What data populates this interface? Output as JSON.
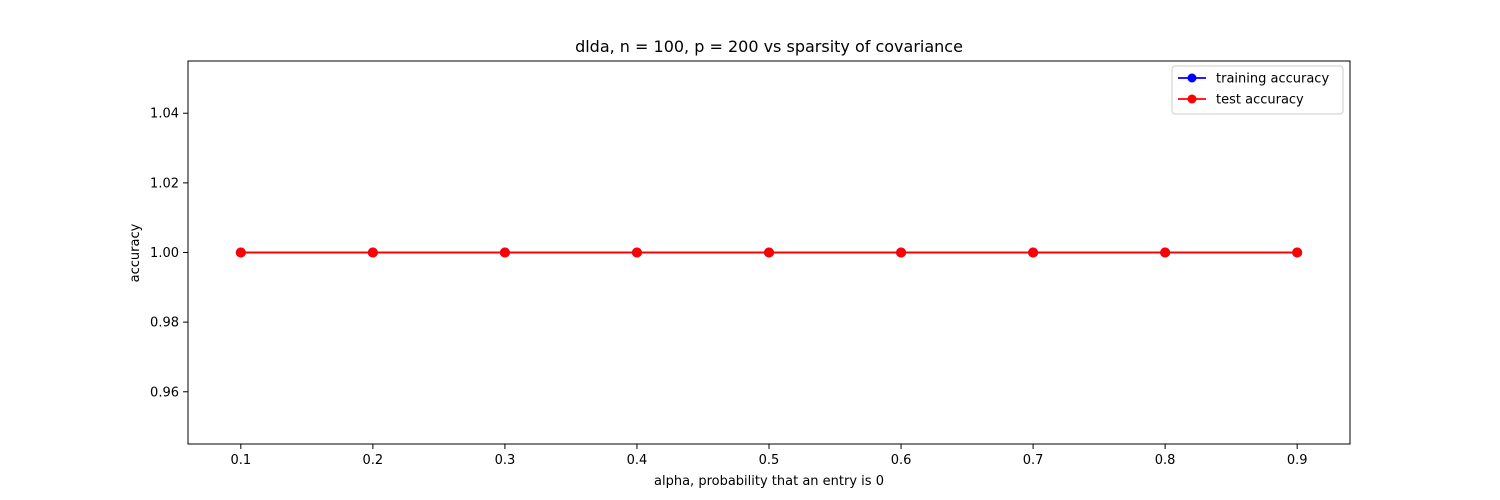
{
  "chart_data": {
    "type": "line",
    "title": "dlda, n = 100, p = 200 vs sparsity of covariance",
    "xlabel": "alpha, probability that an entry is 0",
    "ylabel": "accuracy",
    "x": [
      0.1,
      0.2,
      0.3,
      0.4,
      0.5,
      0.6,
      0.7,
      0.8,
      0.9
    ],
    "xticks": [
      "0.1",
      "0.2",
      "0.3",
      "0.4",
      "0.5",
      "0.6",
      "0.7",
      "0.8",
      "0.9"
    ],
    "yticks": [
      "0.96",
      "0.98",
      "1.00",
      "1.02",
      "1.04"
    ],
    "xlim": [
      0.06,
      0.94
    ],
    "ylim": [
      0.945,
      1.055
    ],
    "grid": false,
    "legend_position": "top-right",
    "series": [
      {
        "name": "training accuracy",
        "color": "#0000ff",
        "marker": "circle",
        "values": [
          1.0,
          1.0,
          1.0,
          1.0,
          1.0,
          1.0,
          1.0,
          1.0,
          1.0
        ]
      },
      {
        "name": "test accuracy",
        "color": "#ff0000",
        "marker": "circle",
        "values": [
          1.0,
          1.0,
          1.0,
          1.0,
          1.0,
          1.0,
          1.0,
          1.0,
          1.0
        ]
      }
    ]
  }
}
